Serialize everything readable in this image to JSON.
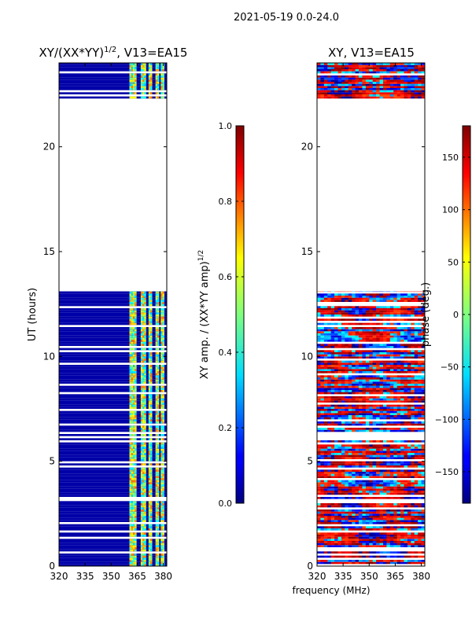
{
  "figure": {
    "suptitle": "2021-05-19 0.0-24.0",
    "common_xlabel": "frequency (MHz)"
  },
  "colormap": "jet",
  "chart_data": [
    {
      "type": "heatmap",
      "title_main": "XY/(XX*YY)",
      "title_sup": "1/2",
      "title_tail": ", V13=EA15",
      "xlabel": "",
      "ylabel": "UT (hours)",
      "xlim": [
        320,
        382
      ],
      "ylim": [
        0,
        24
      ],
      "xticks": [
        320,
        335,
        350,
        365,
        380
      ],
      "yticks": [
        0,
        5,
        10,
        15,
        20
      ],
      "data_ranges_hours": [
        [
          0,
          13.1
        ],
        [
          22.3,
          24
        ]
      ],
      "bright_channels_mhz": [
        [
          360.5,
          364.5
        ],
        [
          367,
          369.5
        ],
        [
          371.5,
          373.5
        ],
        [
          375.5,
          377
        ],
        [
          378.5,
          380
        ]
      ],
      "colorbar": {
        "label_main": "XY amp. / (XX*YY amp)",
        "label_sup": "1/2",
        "range": [
          0,
          1
        ],
        "ticks": [
          "0.0",
          "0.2",
          "0.4",
          "0.6",
          "0.8",
          "1.0"
        ]
      }
    },
    {
      "type": "heatmap",
      "title": "XY, V13=EA15",
      "xlabel": "frequency (MHz)",
      "ylabel": "",
      "xlim": [
        320,
        382
      ],
      "ylim": [
        0,
        24
      ],
      "xticks": [
        320,
        335,
        350,
        365,
        380
      ],
      "yticks": [
        0,
        5,
        10,
        15,
        20
      ],
      "data_ranges_hours": [
        [
          0,
          13.1
        ],
        [
          22.3,
          24
        ]
      ],
      "colorbar": {
        "label": "phase (deg.)",
        "range": [
          -180,
          180
        ],
        "ticks": [
          "−150",
          "−100",
          "−50",
          "0",
          "50",
          "100",
          "150"
        ]
      }
    }
  ]
}
